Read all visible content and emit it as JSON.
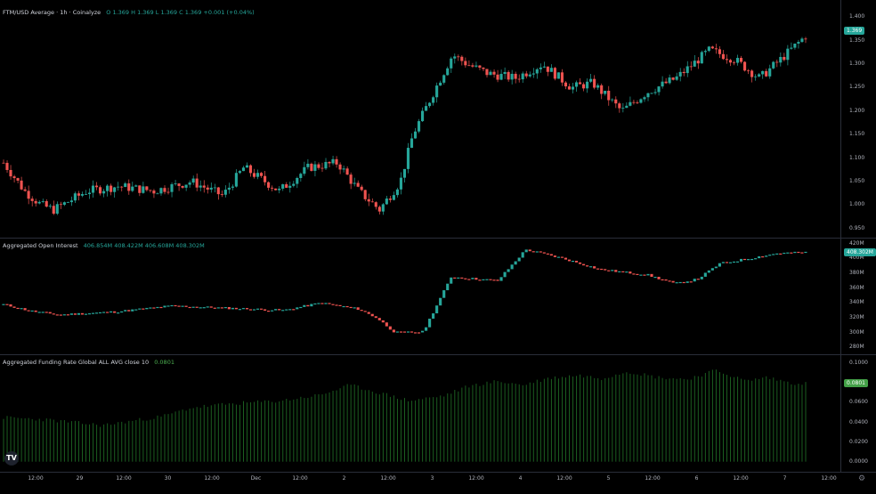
{
  "price_pane": {
    "legend_title": "FTM/USD Average · 1h · Coinalyze",
    "legend_values": "O 1.369  H 1.369  L 1.369  C 1.369  +0.001 (+0.04%)",
    "yticks": [
      "1.400",
      "1.350",
      "1.300",
      "1.250",
      "1.200",
      "1.150",
      "1.100",
      "1.050",
      "1.000",
      "0.950"
    ],
    "last_badge": "1.369",
    "up_color": "#26a69a",
    "down_color": "#ef5350"
  },
  "oi_pane": {
    "legend_title": "Aggregated Open Interest",
    "legend_values": "406.854M  408.422M  406.608M  408.302M",
    "yticks": [
      "420M",
      "400M",
      "380M",
      "360M",
      "340M",
      "320M",
      "300M",
      "280M"
    ],
    "last_badge": "408.302M"
  },
  "funding_pane": {
    "legend_title": "Aggregated Funding Rate Global ALL AVG close 10",
    "legend_value": "0.0801",
    "yticks": [
      "0.1000",
      "0.0800",
      "0.0600",
      "0.0400",
      "0.0200",
      "0.0000"
    ],
    "last_badge": "0.0801",
    "bar_color": "#1b5e20",
    "badge_color": "#43a047"
  },
  "x_axis": {
    "ticks": [
      "12:00",
      "29",
      "12:00",
      "30",
      "12:00",
      "Dec",
      "12:00",
      "2",
      "12:00",
      "3",
      "12:00",
      "4",
      "12:00",
      "5",
      "12:00",
      "6",
      "12:00",
      "7",
      "12:00"
    ]
  },
  "logo_text": "TV",
  "settings_icon": "⚙",
  "chart_data": [
    {
      "type": "candlestick",
      "title": "FTM/USD Average · 1h · Coinalyze",
      "ylim": [
        0.94,
        1.41
      ],
      "points": 225,
      "anchors": [
        [
          0,
          1.09
        ],
        [
          10,
          1.03
        ],
        [
          18,
          1.0
        ],
        [
          24,
          0.99
        ],
        [
          40,
          1.03
        ],
        [
          55,
          1.04
        ],
        [
          72,
          1.03
        ],
        [
          90,
          1.05
        ],
        [
          105,
          1.02
        ],
        [
          115,
          1.08
        ],
        [
          132,
          1.03
        ],
        [
          146,
          1.08
        ],
        [
          160,
          1.09
        ],
        [
          170,
          1.03
        ],
        [
          180,
          0.99
        ],
        [
          190,
          1.05
        ],
        [
          196,
          1.15
        ],
        [
          207,
          1.25
        ],
        [
          215,
          1.32
        ],
        [
          222,
          1.3
        ],
        [
          232,
          1.28
        ],
        [
          245,
          1.27
        ],
        [
          258,
          1.3
        ],
        [
          272,
          1.25
        ],
        [
          282,
          1.26
        ],
        [
          296,
          1.2
        ],
        [
          308,
          1.24
        ],
        [
          322,
          1.27
        ],
        [
          338,
          1.33
        ],
        [
          350,
          1.31
        ],
        [
          362,
          1.27
        ],
        [
          372,
          1.31
        ],
        [
          384,
          1.36
        ]
      ]
    },
    {
      "type": "line",
      "title": "Aggregated Open Interest",
      "ylim": [
        278,
        422
      ],
      "anchors": [
        [
          0,
          338
        ],
        [
          15,
          329
        ],
        [
          30,
          324
        ],
        [
          60,
          328
        ],
        [
          90,
          336
        ],
        [
          110,
          334
        ],
        [
          150,
          330
        ],
        [
          170,
          340
        ],
        [
          190,
          332
        ],
        [
          200,
          320
        ],
        [
          210,
          300
        ],
        [
          225,
          301
        ],
        [
          240,
          375
        ],
        [
          265,
          370
        ],
        [
          280,
          412
        ],
        [
          300,
          400
        ],
        [
          320,
          385
        ],
        [
          345,
          378
        ],
        [
          360,
          366
        ],
        [
          372,
          372
        ],
        [
          384,
          393
        ],
        [
          400,
          400
        ],
        [
          415,
          407
        ],
        [
          430,
          408
        ]
      ]
    },
    {
      "type": "bar",
      "title": "Aggregated Funding Rate Global ALL AVG close 10",
      "ylim": [
        -0.003,
        0.103
      ],
      "anchors": [
        [
          0,
          0.045
        ],
        [
          20,
          0.043
        ],
        [
          50,
          0.037
        ],
        [
          80,
          0.046
        ],
        [
          95,
          0.055
        ],
        [
          115,
          0.059
        ],
        [
          140,
          0.062
        ],
        [
          160,
          0.068
        ],
        [
          175,
          0.078
        ],
        [
          190,
          0.07
        ],
        [
          205,
          0.062
        ],
        [
          222,
          0.067
        ],
        [
          235,
          0.077
        ],
        [
          250,
          0.082
        ],
        [
          262,
          0.078
        ],
        [
          275,
          0.085
        ],
        [
          290,
          0.088
        ],
        [
          302,
          0.085
        ],
        [
          315,
          0.092
        ],
        [
          330,
          0.086
        ],
        [
          345,
          0.084
        ],
        [
          360,
          0.093
        ],
        [
          375,
          0.082
        ],
        [
          385,
          0.086
        ],
        [
          398,
          0.08
        ],
        [
          405,
          0.08
        ]
      ]
    }
  ]
}
